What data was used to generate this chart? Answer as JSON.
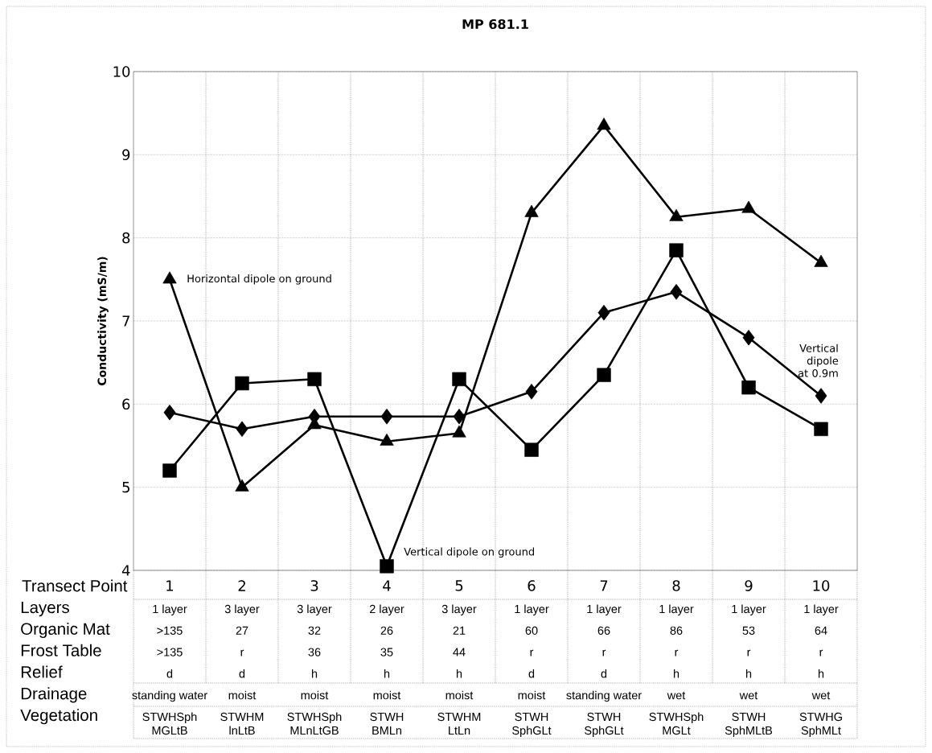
{
  "chart_data": {
    "type": "line",
    "title": "MP 681.1",
    "xlabel": "Transect Point",
    "ylabel": "Conductivity (mS/m)",
    "categories": [
      "1",
      "2",
      "3",
      "4",
      "5",
      "6",
      "7",
      "8",
      "9",
      "10"
    ],
    "series": [
      {
        "name": "Horizontal dipole on ground",
        "color": "#000000",
        "marker": "triangle",
        "values": [
          7.5,
          5.0,
          5.75,
          5.55,
          5.65,
          8.3,
          9.35,
          8.25,
          8.35,
          7.7
        ]
      },
      {
        "name": "Vertical dipole on ground",
        "color": "#000000",
        "marker": "square",
        "values": [
          5.2,
          6.25,
          6.3,
          4.05,
          6.3,
          5.45,
          6.35,
          7.85,
          6.2,
          5.7
        ]
      },
      {
        "name": "Vertical dipole at 0.9m",
        "color": "#000000",
        "marker": "diamond",
        "values": [
          5.9,
          5.7,
          5.85,
          5.85,
          5.85,
          6.15,
          7.1,
          7.35,
          6.8,
          6.1
        ]
      }
    ],
    "ylim": [
      4,
      10
    ],
    "yticks": [
      4,
      5,
      6,
      7,
      8,
      9,
      10
    ],
    "grid": true,
    "legend": false,
    "line_style": "solid",
    "annotations": [
      "Layers",
      "1 layer",
      "3 layer",
      "3 layer",
      "2 layer",
      "3 layer",
      "1 layer",
      "1 layer",
      "1 layer",
      "1 layer",
      "1 layer",
      "Organic Mat",
      ">135",
      "27",
      "32",
      "26",
      "21",
      "60",
      "66",
      "86",
      "53",
      "64",
      "Frost Table",
      ">135",
      "r",
      "36",
      "35",
      "44",
      "r",
      "r",
      "r",
      "r",
      "r",
      "Relief",
      "d",
      "d",
      "h",
      "h",
      "h",
      "d",
      "d",
      "h",
      "h",
      "h",
      "Drainage",
      "standing water",
      "moist",
      "moist",
      "moist",
      "moist",
      "moist",
      "standing water",
      "wet",
      "wet",
      "wet",
      "Vegetation",
      "STWHSph MGLtB",
      "STWHM lnLtB",
      "STWHSph MLnLtGB",
      "STWH BMLn",
      "STWHM LtLn",
      "STWH SphGLt",
      "STWH SphGLt",
      "STWHSph MGLt",
      "STWH SphMLtB",
      "STWHG SphMLt"
    ]
  }
}
